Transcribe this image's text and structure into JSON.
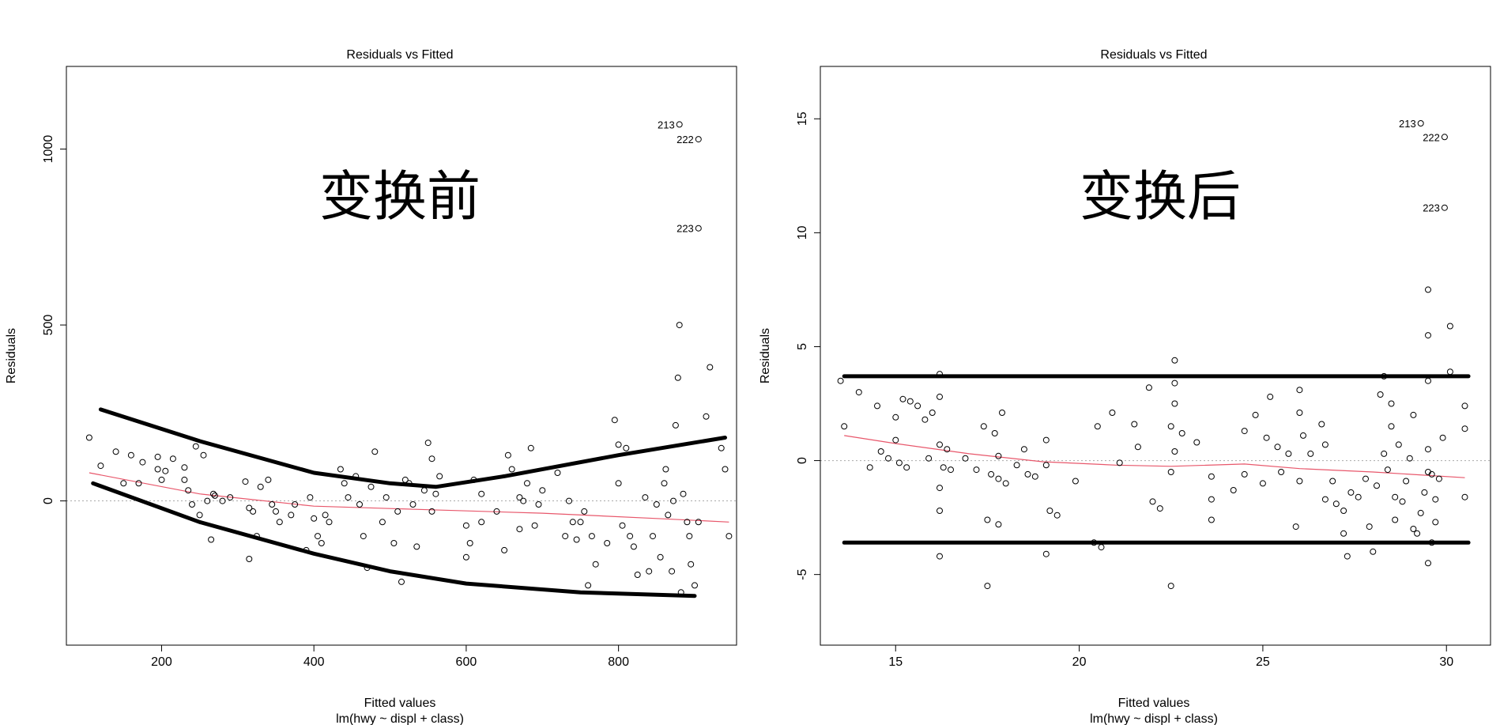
{
  "chart_data": [
    {
      "type": "scatter",
      "title": "Residuals vs Fitted",
      "xlabel": "Fitted values",
      "sublabel": "lm(hwy ~ displ + class)",
      "ylabel": "Residuals",
      "annotation": "变换前",
      "xlim": [
        75,
        955
      ],
      "ylim": [
        -410,
        1235
      ],
      "xticks": [
        200,
        400,
        600,
        800
      ],
      "yticks": [
        0,
        500,
        1000
      ],
      "grid": false,
      "zero_line": true,
      "colors": {
        "points": "#000000",
        "smooth": "#e8576b",
        "zero_line": "#aaaaaa",
        "bands": "#000000"
      },
      "outliers": [
        {
          "label": "213",
          "x": 880,
          "y": 1070
        },
        {
          "label": "222",
          "x": 905,
          "y": 1028
        },
        {
          "label": "223",
          "x": 905,
          "y": 775
        }
      ],
      "points": [
        [
          105,
          180
        ],
        [
          120,
          100
        ],
        [
          140,
          140
        ],
        [
          150,
          50
        ],
        [
          160,
          130
        ],
        [
          170,
          50
        ],
        [
          175,
          110
        ],
        [
          195,
          125
        ],
        [
          195,
          90
        ],
        [
          200,
          60
        ],
        [
          205,
          85
        ],
        [
          215,
          120
        ],
        [
          230,
          95
        ],
        [
          230,
          60
        ],
        [
          235,
          30
        ],
        [
          240,
          -10
        ],
        [
          245,
          155
        ],
        [
          250,
          -40
        ],
        [
          255,
          130
        ],
        [
          260,
          0
        ],
        [
          265,
          -110
        ],
        [
          268,
          20
        ],
        [
          270,
          15
        ],
        [
          280,
          0
        ],
        [
          290,
          10
        ],
        [
          310,
          55
        ],
        [
          315,
          -20
        ],
        [
          320,
          -30
        ],
        [
          315,
          -165
        ],
        [
          325,
          -100
        ],
        [
          330,
          40
        ],
        [
          340,
          60
        ],
        [
          345,
          -10
        ],
        [
          350,
          -30
        ],
        [
          355,
          -60
        ],
        [
          370,
          -40
        ],
        [
          375,
          -10
        ],
        [
          390,
          -140
        ],
        [
          395,
          10
        ],
        [
          400,
          -50
        ],
        [
          405,
          -100
        ],
        [
          410,
          -120
        ],
        [
          415,
          -40
        ],
        [
          420,
          -60
        ],
        [
          435,
          90
        ],
        [
          440,
          50
        ],
        [
          445,
          10
        ],
        [
          455,
          70
        ],
        [
          460,
          -10
        ],
        [
          465,
          -100
        ],
        [
          470,
          -190
        ],
        [
          475,
          40
        ],
        [
          480,
          140
        ],
        [
          490,
          -60
        ],
        [
          495,
          10
        ],
        [
          505,
          -120
        ],
        [
          510,
          -30
        ],
        [
          515,
          -230
        ],
        [
          520,
          60
        ],
        [
          525,
          50
        ],
        [
          530,
          -10
        ],
        [
          535,
          -130
        ],
        [
          545,
          30
        ],
        [
          550,
          165
        ],
        [
          555,
          120
        ],
        [
          555,
          -30
        ],
        [
          560,
          20
        ],
        [
          565,
          70
        ],
        [
          600,
          -70
        ],
        [
          600,
          -160
        ],
        [
          605,
          -120
        ],
        [
          610,
          60
        ],
        [
          620,
          20
        ],
        [
          620,
          -60
        ],
        [
          640,
          -30
        ],
        [
          650,
          -140
        ],
        [
          655,
          130
        ],
        [
          660,
          90
        ],
        [
          670,
          10
        ],
        [
          670,
          -80
        ],
        [
          675,
          0
        ],
        [
          680,
          50
        ],
        [
          685,
          150
        ],
        [
          690,
          -70
        ],
        [
          695,
          -10
        ],
        [
          700,
          30
        ],
        [
          720,
          80
        ],
        [
          730,
          -100
        ],
        [
          735,
          0
        ],
        [
          740,
          -60
        ],
        [
          745,
          -110
        ],
        [
          750,
          -60
        ],
        [
          755,
          -30
        ],
        [
          760,
          -240
        ],
        [
          765,
          -100
        ],
        [
          770,
          -180
        ],
        [
          785,
          -120
        ],
        [
          795,
          230
        ],
        [
          800,
          160
        ],
        [
          800,
          50
        ],
        [
          805,
          -70
        ],
        [
          810,
          150
        ],
        [
          815,
          -100
        ],
        [
          820,
          -130
        ],
        [
          825,
          -210
        ],
        [
          835,
          10
        ],
        [
          840,
          -200
        ],
        [
          845,
          -100
        ],
        [
          850,
          -10
        ],
        [
          855,
          -160
        ],
        [
          860,
          50
        ],
        [
          862,
          90
        ],
        [
          865,
          -40
        ],
        [
          870,
          -200
        ],
        [
          872,
          0
        ],
        [
          875,
          215
        ],
        [
          878,
          350
        ],
        [
          880,
          500
        ],
        [
          882,
          -260
        ],
        [
          885,
          20
        ],
        [
          890,
          -60
        ],
        [
          893,
          -100
        ],
        [
          895,
          -180
        ],
        [
          900,
          -240
        ],
        [
          905,
          -60
        ],
        [
          915,
          240
        ],
        [
          920,
          380
        ],
        [
          935,
          150
        ],
        [
          940,
          90
        ],
        [
          945,
          -100
        ]
      ],
      "smooth": [
        [
          105,
          80
        ],
        [
          250,
          20
        ],
        [
          400,
          -15
        ],
        [
          550,
          -25
        ],
        [
          700,
          -35
        ],
        [
          850,
          -50
        ],
        [
          945,
          -60
        ]
      ],
      "upper_band": [
        [
          120,
          260
        ],
        [
          250,
          170
        ],
        [
          400,
          80
        ],
        [
          500,
          50
        ],
        [
          560,
          40
        ],
        [
          650,
          70
        ],
        [
          800,
          130
        ],
        [
          940,
          180
        ]
      ],
      "lower_band": [
        [
          110,
          50
        ],
        [
          250,
          -60
        ],
        [
          400,
          -150
        ],
        [
          500,
          -200
        ],
        [
          600,
          -235
        ],
        [
          750,
          -260
        ],
        [
          900,
          -270
        ]
      ]
    },
    {
      "type": "scatter",
      "title": "Residuals vs Fitted",
      "xlabel": "Fitted values",
      "sublabel": "lm(hwy ~ displ + class)",
      "ylabel": "Residuals",
      "annotation": "变换后",
      "xlim": [
        12.95,
        31.2
      ],
      "ylim": [
        -8.1,
        17.3
      ],
      "xticks": [
        15,
        20,
        25,
        30
      ],
      "yticks": [
        -5,
        0,
        5,
        10,
        15
      ],
      "grid": false,
      "zero_line": true,
      "colors": {
        "points": "#000000",
        "smooth": "#e8576b",
        "zero_line": "#aaaaaa",
        "bands": "#000000"
      },
      "outliers": [
        {
          "label": "213",
          "x": 29.3,
          "y": 14.8
        },
        {
          "label": "222",
          "x": 29.95,
          "y": 14.2
        },
        {
          "label": "223",
          "x": 29.95,
          "y": 11.1
        }
      ],
      "points": [
        [
          13.5,
          3.5
        ],
        [
          13.6,
          1.5
        ],
        [
          14.0,
          3.0
        ],
        [
          14.3,
          -0.3
        ],
        [
          14.5,
          2.4
        ],
        [
          14.6,
          0.4
        ],
        [
          14.8,
          0.1
        ],
        [
          15.0,
          1.9
        ],
        [
          15.0,
          0.9
        ],
        [
          15.1,
          -0.1
        ],
        [
          15.2,
          2.7
        ],
        [
          15.3,
          -0.3
        ],
        [
          15.4,
          2.6
        ],
        [
          15.6,
          2.4
        ],
        [
          15.8,
          1.8
        ],
        [
          15.9,
          0.1
        ],
        [
          16.0,
          2.1
        ],
        [
          16.2,
          3.8
        ],
        [
          16.2,
          2.8
        ],
        [
          16.2,
          0.7
        ],
        [
          16.3,
          -0.3
        ],
        [
          16.2,
          -1.2
        ],
        [
          16.2,
          -2.2
        ],
        [
          16.2,
          -4.2
        ],
        [
          16.4,
          0.5
        ],
        [
          16.5,
          -0.4
        ],
        [
          16.9,
          0.1
        ],
        [
          17.2,
          -0.4
        ],
        [
          17.4,
          1.5
        ],
        [
          17.5,
          -2.6
        ],
        [
          17.5,
          -5.5
        ],
        [
          17.6,
          -0.6
        ],
        [
          17.7,
          1.2
        ],
        [
          17.8,
          -2.8
        ],
        [
          17.8,
          -0.8
        ],
        [
          17.8,
          0.2
        ],
        [
          17.9,
          2.1
        ],
        [
          18.0,
          -1.0
        ],
        [
          18.3,
          -0.2
        ],
        [
          18.5,
          0.5
        ],
        [
          18.6,
          -0.6
        ],
        [
          18.8,
          -0.7
        ],
        [
          19.1,
          -0.2
        ],
        [
          19.1,
          0.9
        ],
        [
          19.1,
          -4.1
        ],
        [
          19.2,
          -2.2
        ],
        [
          19.4,
          -2.4
        ],
        [
          19.9,
          -0.9
        ],
        [
          20.4,
          -3.6
        ],
        [
          20.5,
          1.5
        ],
        [
          20.6,
          -3.8
        ],
        [
          20.9,
          2.1
        ],
        [
          21.1,
          -0.1
        ],
        [
          21.5,
          1.6
        ],
        [
          21.6,
          0.6
        ],
        [
          21.9,
          3.2
        ],
        [
          22.0,
          -1.8
        ],
        [
          22.2,
          -2.1
        ],
        [
          22.6,
          4.4
        ],
        [
          22.6,
          3.4
        ],
        [
          22.5,
          1.5
        ],
        [
          22.6,
          2.5
        ],
        [
          22.6,
          0.4
        ],
        [
          22.5,
          -0.5
        ],
        [
          22.5,
          -5.5
        ],
        [
          22.8,
          1.2
        ],
        [
          23.2,
          0.8
        ],
        [
          23.6,
          -0.7
        ],
        [
          23.6,
          -1.7
        ],
        [
          23.6,
          -2.6
        ],
        [
          24.2,
          -1.3
        ],
        [
          24.5,
          -0.6
        ],
        [
          24.5,
          1.3
        ],
        [
          24.8,
          2.0
        ],
        [
          25.0,
          -1.0
        ],
        [
          25.1,
          1.0
        ],
        [
          25.2,
          2.8
        ],
        [
          25.4,
          0.6
        ],
        [
          25.5,
          -0.5
        ],
        [
          25.7,
          0.3
        ],
        [
          25.9,
          -2.9
        ],
        [
          26.0,
          -0.9
        ],
        [
          26.0,
          2.1
        ],
        [
          26.0,
          3.1
        ],
        [
          26.1,
          1.1
        ],
        [
          26.3,
          0.3
        ],
        [
          26.6,
          1.6
        ],
        [
          26.7,
          0.7
        ],
        [
          26.7,
          -1.7
        ],
        [
          26.9,
          -0.9
        ],
        [
          27.0,
          -1.9
        ],
        [
          27.2,
          -2.2
        ],
        [
          27.2,
          -3.2
        ],
        [
          27.3,
          -4.2
        ],
        [
          27.4,
          -1.4
        ],
        [
          27.6,
          -1.6
        ],
        [
          27.8,
          -0.8
        ],
        [
          27.9,
          -2.9
        ],
        [
          28.0,
          -4.0
        ],
        [
          28.1,
          -1.1
        ],
        [
          28.2,
          2.9
        ],
        [
          28.3,
          3.7
        ],
        [
          28.3,
          0.3
        ],
        [
          28.4,
          -0.4
        ],
        [
          28.5,
          1.5
        ],
        [
          28.5,
          2.5
        ],
        [
          28.6,
          -1.6
        ],
        [
          28.6,
          -2.6
        ],
        [
          28.7,
          0.7
        ],
        [
          28.8,
          -1.8
        ],
        [
          28.9,
          -0.9
        ],
        [
          29.0,
          0.1
        ],
        [
          29.1,
          -3.0
        ],
        [
          29.1,
          2.0
        ],
        [
          29.2,
          -3.2
        ],
        [
          29.3,
          -2.3
        ],
        [
          29.4,
          -1.4
        ],
        [
          29.5,
          -4.5
        ],
        [
          29.5,
          -0.5
        ],
        [
          29.5,
          0.5
        ],
        [
          29.5,
          3.5
        ],
        [
          29.5,
          5.5
        ],
        [
          29.5,
          7.5
        ],
        [
          29.6,
          -3.6
        ],
        [
          29.6,
          -0.6
        ],
        [
          29.7,
          -2.7
        ],
        [
          29.7,
          -1.7
        ],
        [
          29.8,
          -0.8
        ],
        [
          29.9,
          1.0
        ],
        [
          30.1,
          3.9
        ],
        [
          30.1,
          5.9
        ],
        [
          30.5,
          2.4
        ],
        [
          30.5,
          1.4
        ],
        [
          30.5,
          -1.6
        ]
      ],
      "smooth": [
        [
          13.6,
          1.1
        ],
        [
          15.0,
          0.75
        ],
        [
          17.0,
          0.3
        ],
        [
          19.0,
          -0.05
        ],
        [
          21.0,
          -0.2
        ],
        [
          22.5,
          -0.25
        ],
        [
          24.5,
          -0.15
        ],
        [
          26.0,
          -0.35
        ],
        [
          28.0,
          -0.5
        ],
        [
          30.5,
          -0.75
        ]
      ],
      "upper_band": [
        [
          13.6,
          3.7
        ],
        [
          30.6,
          3.7
        ]
      ],
      "lower_band": [
        [
          13.6,
          -3.6
        ],
        [
          30.6,
          -3.6
        ]
      ]
    }
  ]
}
